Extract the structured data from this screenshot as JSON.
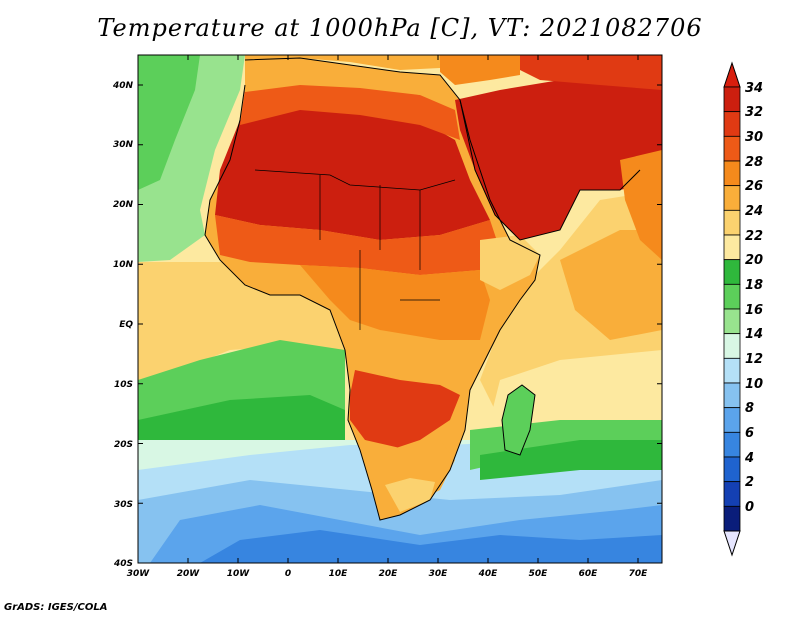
{
  "title": "Temperature at 1000hPa [C], VT: 2021082706",
  "credit": "GrADS: IGES/COLA",
  "map": {
    "variable": "Temperature at 1000hPa",
    "units": "C",
    "valid_time": "2021082706",
    "lon_ticks": [
      "30W",
      "20W",
      "10W",
      "0",
      "10E",
      "20E",
      "30E",
      "40E",
      "50E",
      "60E",
      "70E"
    ],
    "lat_ticks": [
      "40N",
      "30N",
      "20N",
      "10N",
      "EQ",
      "10S",
      "20S",
      "30S",
      "40S"
    ]
  },
  "colorbar": {
    "labels": [
      "34",
      "32",
      "30",
      "28",
      "26",
      "24",
      "22",
      "20",
      "18",
      "16",
      "14",
      "12",
      "10",
      "8",
      "6",
      "4",
      "2",
      "0"
    ],
    "colors": [
      "#cc1f0f",
      "#e03a13",
      "#ee5a17",
      "#f58a1c",
      "#f9ae3a",
      "#fbd26f",
      "#fde9a0",
      "#2fb83c",
      "#5ccf5a",
      "#98e38e",
      "#d8f7e4",
      "#b4e0f7",
      "#86c2f0",
      "#5ba4ec",
      "#3785e0",
      "#1f63cf",
      "#1440b3",
      "#0a1d7a"
    ],
    "over_color": "#d81e0e",
    "under_color": "#e6e6ff"
  }
}
